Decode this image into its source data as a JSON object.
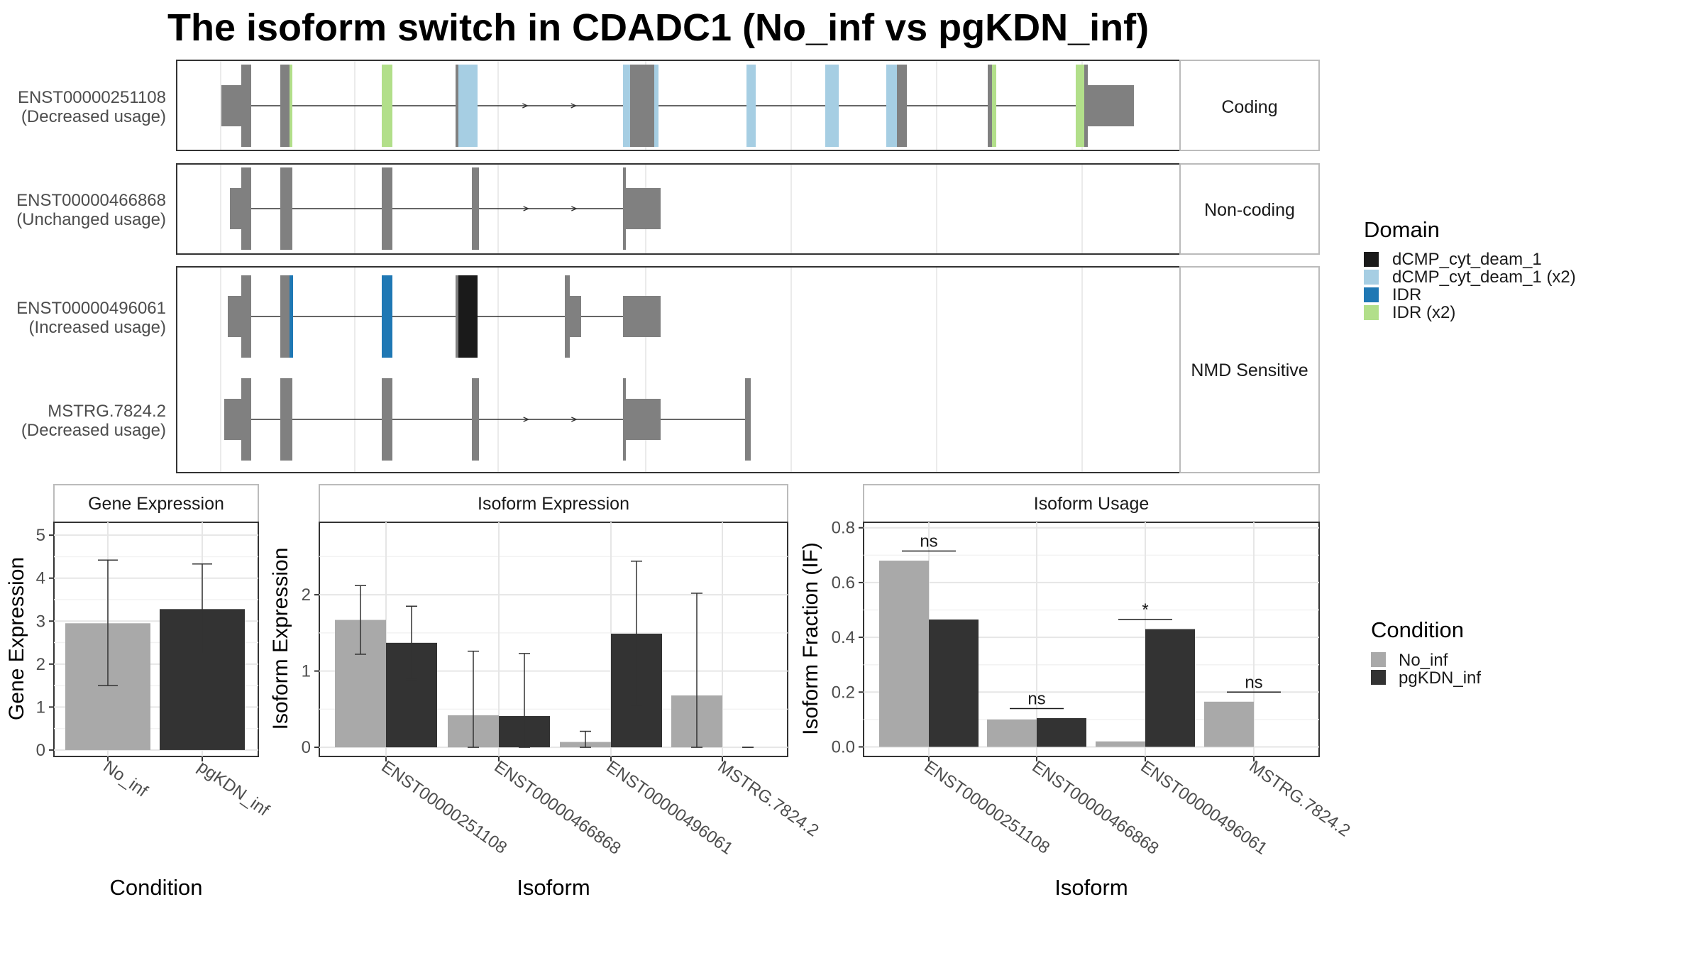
{
  "title": "The isoform switch in CDADC1 (No_inf vs pgKDN_inf)",
  "colors": {
    "exon": "#808080",
    "no_inf": "#a9a9a9",
    "pgkdn_inf": "#333333",
    "dCMP_cyt_deam_1": "#1a1a1a",
    "dCMP_cyt_deam_1_x2": "#a6cee3",
    "IDR": "#1f78b4",
    "IDR_x2": "#b2df8a"
  },
  "chart_data": [
    {
      "type": "gene-structure",
      "facets": [
        "Coding",
        "Non-coding",
        "NMD Sensitive"
      ],
      "isoforms": [
        {
          "id": "ENST00000251108",
          "usage": "(Decreased usage)",
          "facet": "Coding"
        },
        {
          "id": "ENST00000466868",
          "usage": "(Unchanged usage)",
          "facet": "Non-coding"
        },
        {
          "id": "ENST00000496061",
          "usage": "(Increased usage)",
          "facet": "NMD Sensitive"
        },
        {
          "id": "MSTRG.7824.2",
          "usage": "(Decreased usage)",
          "facet": "NMD Sensitive"
        }
      ],
      "legend": {
        "title": "Domain",
        "entries": [
          "dCMP_cyt_deam_1",
          "dCMP_cyt_deam_1 (x2)",
          "IDR",
          "IDR (x2)"
        ]
      }
    },
    {
      "type": "bar",
      "title": "Gene Expression",
      "xlabel": "Condition",
      "ylabel": "Gene Expression",
      "categories": [
        "No_inf",
        "pgKDN_inf"
      ],
      "values": [
        2.95,
        3.28
      ],
      "errors": [
        [
          1.5,
          4.42
        ],
        [
          2.24,
          4.33
        ]
      ],
      "ylim": [
        -0.15,
        5.3
      ],
      "yticks": [
        0,
        1,
        2,
        3,
        4,
        5
      ]
    },
    {
      "type": "bar",
      "title": "Isoform Expression",
      "xlabel": "Isoform",
      "ylabel": "Isoform Expression",
      "categories": [
        "ENST00000251108",
        "ENST00000466868",
        "ENST00000496061",
        "MSTRG.7824.2"
      ],
      "series": [
        {
          "name": "No_inf",
          "values": [
            1.67,
            0.42,
            0.07,
            0.68
          ],
          "errors": [
            [
              1.22,
              2.12
            ],
            [
              0,
              1.26
            ],
            [
              0,
              0.21
            ],
            [
              0,
              2.02
            ]
          ]
        },
        {
          "name": "pgKDN_inf",
          "values": [
            1.37,
            0.41,
            1.49,
            0
          ],
          "errors": [
            [
              0.89,
              1.85
            ],
            [
              0,
              1.23
            ],
            [
              0.55,
              2.44
            ],
            [
              0,
              0
            ]
          ]
        }
      ],
      "ylim": [
        -0.12,
        2.95
      ],
      "yticks": [
        0,
        1,
        2
      ]
    },
    {
      "type": "bar",
      "title": "Isoform Usage",
      "xlabel": "Isoform",
      "ylabel": "Isoform Fraction (IF)",
      "categories": [
        "ENST00000251108",
        "ENST00000466868",
        "ENST00000496061",
        "MSTRG.7824.2"
      ],
      "series": [
        {
          "name": "No_inf",
          "values": [
            0.68,
            0.1,
            0.02,
            0.165
          ]
        },
        {
          "name": "pgKDN_inf",
          "values": [
            0.465,
            0.105,
            0.43,
            0
          ]
        }
      ],
      "significance": [
        "ns",
        "ns",
        "*",
        "ns"
      ],
      "ylim": [
        -0.035,
        0.82
      ],
      "yticks": [
        "0.0",
        "0.2",
        "0.4",
        "0.6",
        "0.8"
      ],
      "legend": {
        "title": "Condition",
        "entries": [
          "No_inf",
          "pgKDN_inf"
        ]
      }
    }
  ]
}
